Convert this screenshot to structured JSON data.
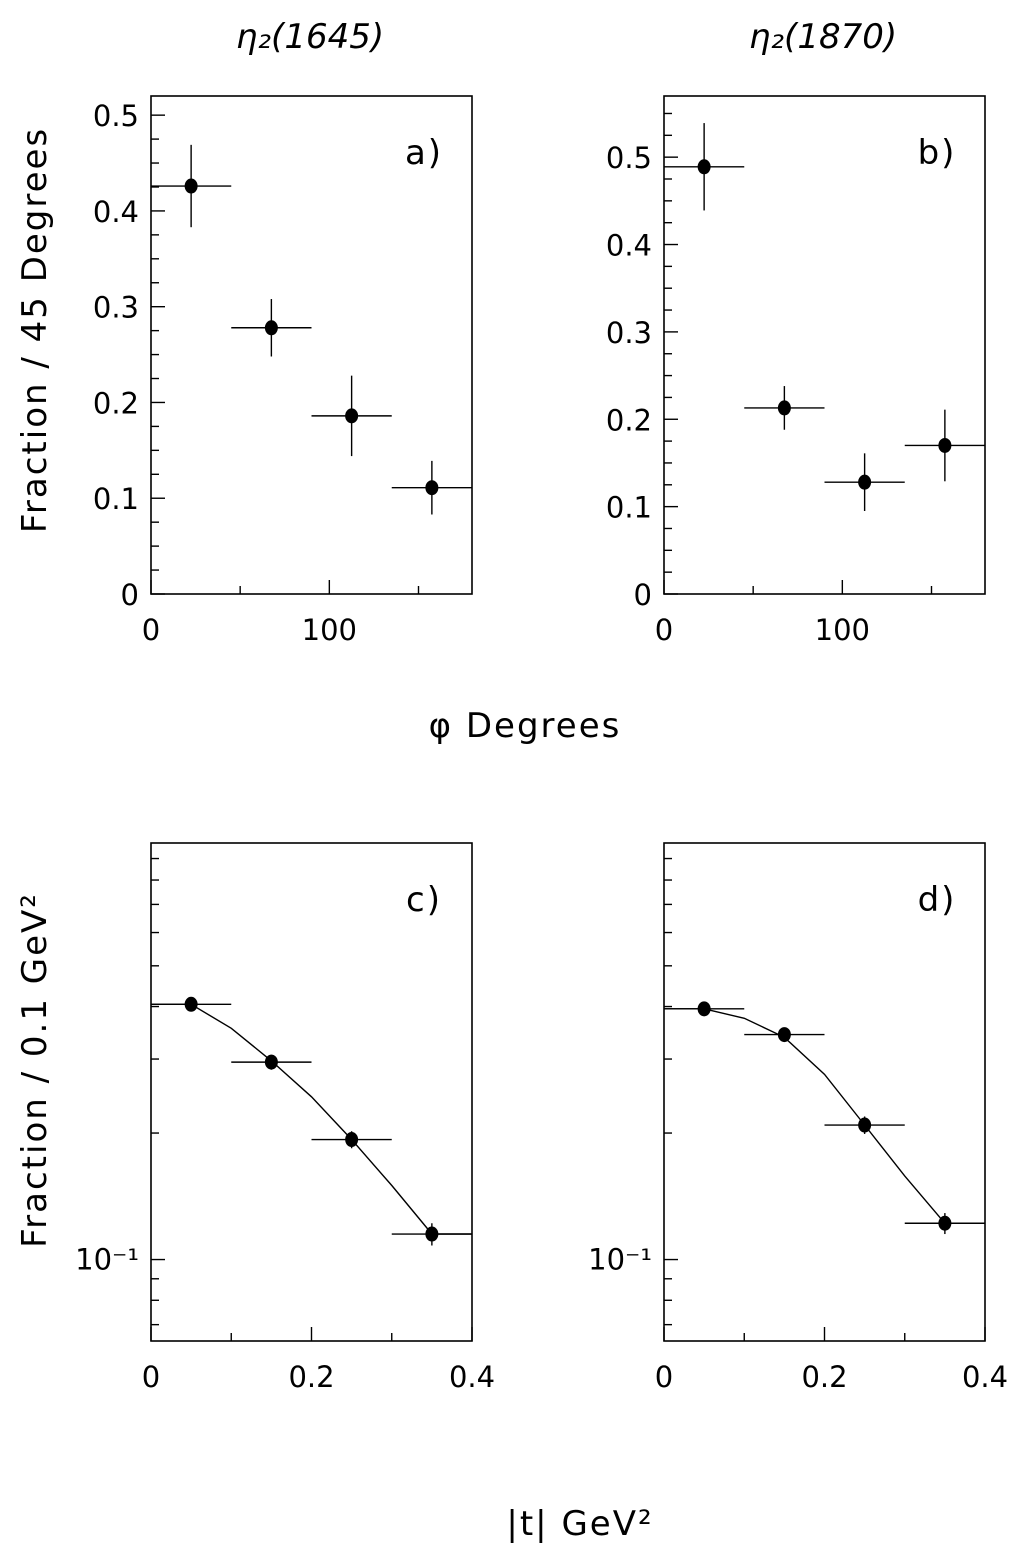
{
  "titles": {
    "left": "η₂(1645)",
    "right": "η₂(1870)"
  },
  "axis_labels": {
    "top_y": "Fraction / 45 Degrees",
    "top_x": "φ   Degrees",
    "bottom_y": "Fraction / 0.1 GeV²",
    "bottom_x": "|t|     GeV²"
  },
  "chart_data": [
    {
      "type": "scatter",
      "panel": "a)",
      "x": [
        22.5,
        67.5,
        112.5,
        157.5
      ],
      "x_err": [
        22.5,
        22.5,
        22.5,
        22.5
      ],
      "y": [
        0.426,
        0.278,
        0.186,
        0.111
      ],
      "y_err": [
        0.043,
        0.03,
        0.042,
        0.028
      ],
      "xlim": [
        0,
        180
      ],
      "ylim": [
        0,
        0.52
      ],
      "yscale": "linear",
      "xticks": [
        0,
        100
      ],
      "yticks": [
        0,
        0.1,
        0.2,
        0.3,
        0.4,
        0.5
      ],
      "ytick_labels": [
        "0",
        "0.1",
        "0.2",
        "0.3",
        "0.4",
        "0.5"
      ]
    },
    {
      "type": "scatter",
      "panel": "b)",
      "x": [
        22.5,
        67.5,
        112.5,
        157.5
      ],
      "x_err": [
        22.5,
        22.5,
        22.5,
        22.5
      ],
      "y": [
        0.489,
        0.213,
        0.128,
        0.17
      ],
      "y_err": [
        0.05,
        0.025,
        0.033,
        0.041
      ],
      "xlim": [
        0,
        180
      ],
      "ylim": [
        0,
        0.57
      ],
      "yscale": "linear",
      "xticks": [
        0,
        100
      ],
      "yticks": [
        0,
        0.1,
        0.2,
        0.3,
        0.4,
        0.5
      ],
      "ytick_labels": [
        "0",
        "0.1",
        "0.2",
        "0.3",
        "0.4",
        "0.5"
      ]
    },
    {
      "type": "scatter",
      "panel": "c)",
      "x": [
        0.05,
        0.15,
        0.25,
        0.35
      ],
      "x_err": [
        0.05,
        0.05,
        0.05,
        0.05
      ],
      "y": [
        0.405,
        0.295,
        0.193,
        0.115
      ],
      "y_err": [
        0.014,
        0.012,
        0.009,
        0.007
      ],
      "fit": {
        "x": [
          0.0,
          0.05,
          0.1,
          0.15,
          0.2,
          0.25,
          0.3,
          0.35,
          0.4
        ],
        "y": [
          0.405,
          0.405,
          0.355,
          0.297,
          0.244,
          0.193,
          0.15,
          0.115,
          0.115
        ]
      },
      "xlim": [
        0,
        0.4
      ],
      "ylim": [
        0.064,
        0.98
      ],
      "yscale": "log",
      "xticks": [
        0,
        0.2,
        0.4
      ],
      "xtick_labels": [
        "0",
        "0.2",
        "0.4"
      ],
      "ytick_label": "10⁻¹"
    },
    {
      "type": "scatter",
      "panel": "d)",
      "x": [
        0.05,
        0.15,
        0.25,
        0.35
      ],
      "x_err": [
        0.05,
        0.05,
        0.05,
        0.05
      ],
      "y": [
        0.395,
        0.343,
        0.209,
        0.122
      ],
      "y_err": [
        0.013,
        0.012,
        0.01,
        0.007
      ],
      "fit": {
        "x": [
          0.0,
          0.05,
          0.1,
          0.15,
          0.2,
          0.25,
          0.3,
          0.35,
          0.4
        ],
        "y": [
          0.395,
          0.395,
          0.375,
          0.338,
          0.276,
          0.209,
          0.158,
          0.122,
          0.122
        ]
      },
      "xlim": [
        0,
        0.4
      ],
      "ylim": [
        0.064,
        0.98
      ],
      "yscale": "log",
      "xticks": [
        0,
        0.2,
        0.4
      ],
      "xtick_labels": [
        "0",
        "0.2",
        "0.4"
      ],
      "ytick_label": "10⁻¹"
    }
  ]
}
